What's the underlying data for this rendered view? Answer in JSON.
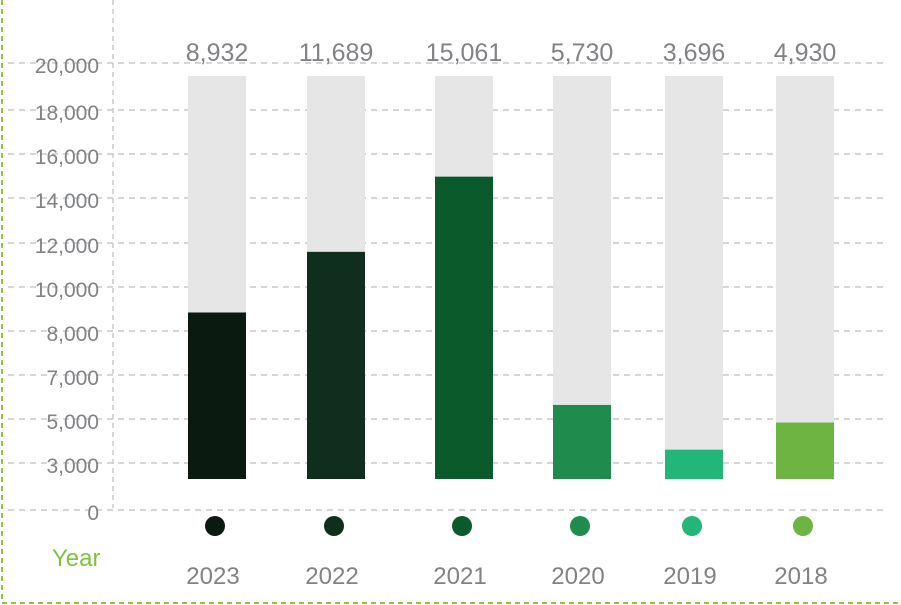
{
  "chart_data": {
    "type": "bar",
    "categories": [
      "2023",
      "2022",
      "2021",
      "2020",
      "2019",
      "2018"
    ],
    "values": [
      8932,
      11689,
      15061,
      5730,
      3696,
      4930
    ],
    "value_labels": [
      "8,932",
      "11,689",
      "15,061",
      "5,730",
      "3,696",
      "4,930"
    ],
    "title": "",
    "xlabel": "Year",
    "ylabel": "",
    "yticks": [
      {
        "value": 0,
        "label": "0"
      },
      {
        "value": 3000,
        "label": "3,000"
      },
      {
        "value": 5000,
        "label": "5,000"
      },
      {
        "value": 7000,
        "label": "7,000"
      },
      {
        "value": 8000,
        "label": "8,000"
      },
      {
        "value": 10000,
        "label": "10,000"
      },
      {
        "value": 12000,
        "label": "12,000"
      },
      {
        "value": 14000,
        "label": "14,000"
      },
      {
        "value": 16000,
        "label": "16,000"
      },
      {
        "value": 18000,
        "label": "18,000"
      },
      {
        "value": 20000,
        "label": "20,000"
      }
    ],
    "ylim": [
      0,
      20000
    ],
    "grid": true,
    "legend": "none",
    "colors": [
      "#0b1a10",
      "#102e1e",
      "#0b5a2c",
      "#1f8b4d",
      "#22b679",
      "#6db443"
    ],
    "track_color": "#e6e6e6",
    "xlabel_color": "#7dc243",
    "frame_color": "#8cc63f"
  }
}
